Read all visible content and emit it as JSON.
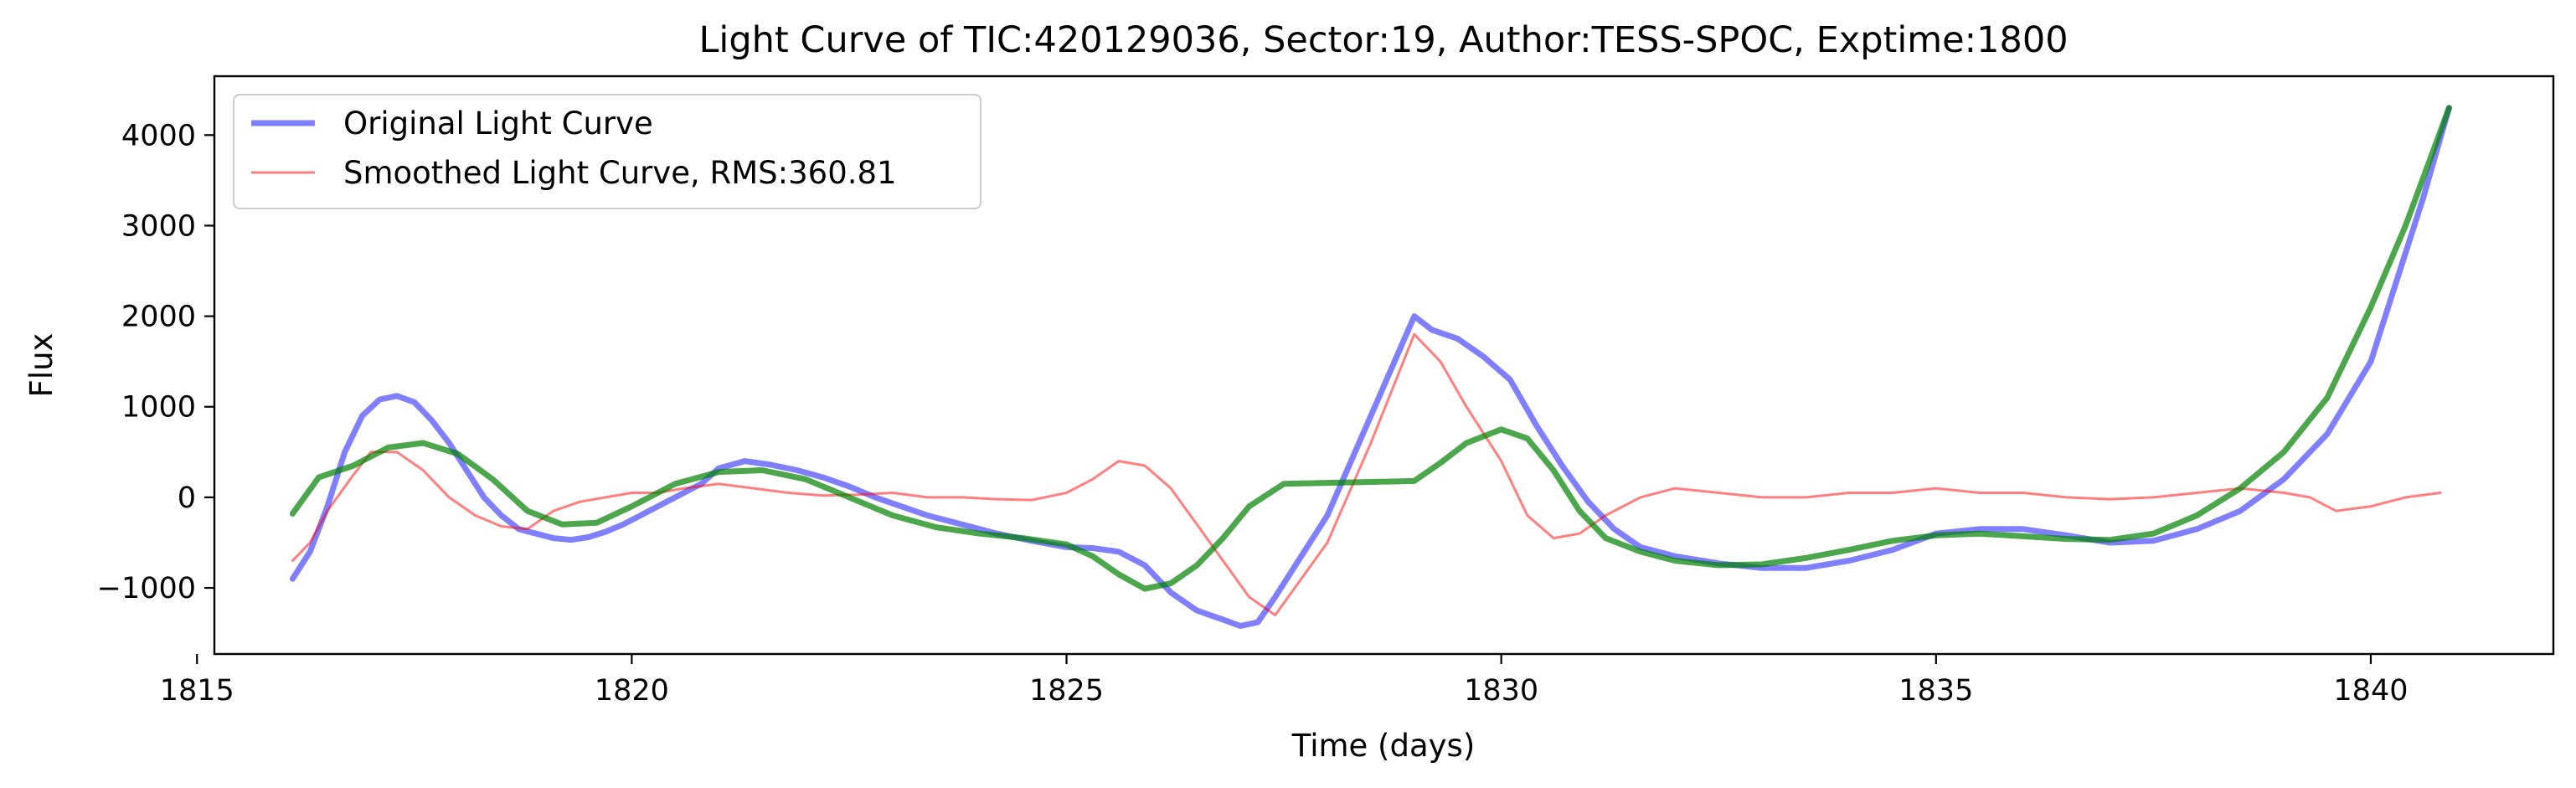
{
  "chart_data": {
    "type": "line",
    "title": "Light Curve of TIC:420129036, Sector:19, Author:TESS-SPOC, Exptime:1800",
    "xlabel": "Time (days)",
    "ylabel": "Flux",
    "xlim": [
      1815.2,
      1842.1
    ],
    "ylim": [
      -1730,
      4650
    ],
    "x_ticks": [
      1815,
      1820,
      1825,
      1830,
      1835,
      1840
    ],
    "y_ticks": [
      -1000,
      0,
      1000,
      2000,
      3000,
      4000
    ],
    "x_tick_labels": [
      "1815",
      "1820",
      "1825",
      "1830",
      "1835",
      "1840"
    ],
    "y_tick_labels": [
      "−1000",
      "0",
      "1000",
      "2000",
      "3000",
      "4000"
    ],
    "grid": false,
    "legend_position": "top-left",
    "series": [
      {
        "name": "Original Light Curve",
        "color": "#0000ff",
        "opacity": 0.5,
        "linewidth": "thick",
        "x": [
          1816.1,
          1816.3,
          1816.5,
          1816.7,
          1816.9,
          1817.1,
          1817.3,
          1817.5,
          1817.7,
          1817.9,
          1818.1,
          1818.3,
          1818.5,
          1818.7,
          1818.9,
          1819.1,
          1819.3,
          1819.5,
          1819.7,
          1819.9,
          1820.2,
          1820.5,
          1820.8,
          1821.0,
          1821.3,
          1821.6,
          1821.9,
          1822.2,
          1822.5,
          1822.8,
          1823.1,
          1823.4,
          1823.8,
          1824.2,
          1824.6,
          1825.0,
          1825.3,
          1825.6,
          1825.9,
          1826.2,
          1826.5,
          1826.8,
          1827.0,
          1827.2,
          1827.4,
          1828.0,
          1828.5,
          1829.0,
          1829.2,
          1829.5,
          1829.8,
          1830.1,
          1830.4,
          1830.7,
          1831.0,
          1831.3,
          1831.6,
          1832.0,
          1832.5,
          1833.0,
          1833.5,
          1834.0,
          1834.5,
          1835.0,
          1835.5,
          1836.0,
          1836.5,
          1837.0,
          1837.5,
          1838.0,
          1838.5,
          1839.0,
          1839.5,
          1840.0,
          1840.3,
          1840.6,
          1840.9
        ],
        "y": [
          -900,
          -600,
          -100,
          500,
          900,
          1080,
          1120,
          1050,
          850,
          600,
          300,
          0,
          -200,
          -350,
          -400,
          -450,
          -470,
          -440,
          -380,
          -300,
          -150,
          0,
          150,
          320,
          400,
          360,
          300,
          220,
          120,
          0,
          -100,
          -200,
          -300,
          -400,
          -480,
          -550,
          -560,
          -600,
          -750,
          -1050,
          -1250,
          -1350,
          -1420,
          -1380,
          -1100,
          -200,
          900,
          2000,
          1850,
          1750,
          1550,
          1300,
          800,
          350,
          -50,
          -350,
          -550,
          -650,
          -730,
          -780,
          -780,
          -700,
          -580,
          -400,
          -350,
          -350,
          -420,
          -500,
          -480,
          -350,
          -150,
          200,
          700,
          1500,
          2400,
          3300,
          4300
        ]
      },
      {
        "name": "Smoothed Light Curve, RMS:360.81",
        "color": "#ff0000",
        "opacity": 0.5,
        "linewidth": "thin",
        "x": [
          1816.1,
          1816.3,
          1816.5,
          1816.8,
          1817.0,
          1817.3,
          1817.6,
          1817.9,
          1818.2,
          1818.5,
          1818.8,
          1819.1,
          1819.4,
          1819.7,
          1820.0,
          1820.3,
          1820.6,
          1821.0,
          1821.4,
          1821.8,
          1822.2,
          1822.6,
          1823.0,
          1823.4,
          1823.8,
          1824.2,
          1824.6,
          1825.0,
          1825.3,
          1825.6,
          1825.9,
          1826.2,
          1826.5,
          1826.8,
          1827.1,
          1827.4,
          1828.0,
          1828.5,
          1829.0,
          1829.3,
          1829.6,
          1830.0,
          1830.3,
          1830.6,
          1830.9,
          1831.2,
          1831.6,
          1832.0,
          1832.5,
          1833.0,
          1833.5,
          1834.0,
          1834.5,
          1835.0,
          1835.5,
          1836.0,
          1836.5,
          1837.0,
          1837.5,
          1838.0,
          1838.5,
          1839.0,
          1839.3,
          1839.6,
          1840.0,
          1840.4,
          1840.8
        ],
        "y": [
          -700,
          -500,
          -150,
          250,
          500,
          500,
          300,
          0,
          -200,
          -320,
          -350,
          -150,
          -50,
          0,
          50,
          50,
          100,
          150,
          100,
          50,
          20,
          30,
          50,
          0,
          0,
          -20,
          -30,
          50,
          200,
          400,
          350,
          100,
          -300,
          -700,
          -1100,
          -1300,
          -500,
          600,
          1800,
          1500,
          1000,
          400,
          -200,
          -450,
          -400,
          -200,
          0,
          100,
          50,
          0,
          0,
          50,
          50,
          100,
          50,
          50,
          0,
          -20,
          0,
          50,
          100,
          50,
          0,
          -150,
          -100,
          0,
          50
        ]
      },
      {
        "name": "",
        "color": "#008000",
        "opacity": 0.7,
        "linewidth": "thick",
        "x": [
          1816.1,
          1816.4,
          1816.8,
          1817.2,
          1817.6,
          1818.0,
          1818.4,
          1818.8,
          1819.2,
          1819.6,
          1820.0,
          1820.5,
          1821.0,
          1821.5,
          1822.0,
          1822.5,
          1823.0,
          1823.5,
          1824.0,
          1824.5,
          1825.0,
          1825.3,
          1825.6,
          1825.9,
          1826.2,
          1826.5,
          1826.8,
          1827.1,
          1827.5,
          1828.0,
          1828.5,
          1829.0,
          1829.3,
          1829.6,
          1830.0,
          1830.3,
          1830.6,
          1830.9,
          1831.2,
          1831.6,
          1832.0,
          1832.5,
          1833.0,
          1833.5,
          1834.0,
          1834.5,
          1835.0,
          1835.5,
          1836.0,
          1836.5,
          1837.0,
          1837.5,
          1838.0,
          1838.5,
          1839.0,
          1839.5,
          1840.0,
          1840.4,
          1840.9
        ],
        "y": [
          -180,
          220,
          350,
          550,
          600,
          480,
          200,
          -150,
          -300,
          -280,
          -100,
          150,
          280,
          300,
          200,
          0,
          -200,
          -330,
          -400,
          -450,
          -520,
          -650,
          -850,
          -1010,
          -950,
          -750,
          -450,
          -100,
          150,
          160,
          170,
          180,
          380,
          600,
          750,
          650,
          300,
          -150,
          -450,
          -600,
          -700,
          -750,
          -740,
          -670,
          -580,
          -480,
          -420,
          -400,
          -430,
          -460,
          -470,
          -400,
          -200,
          100,
          500,
          1100,
          2100,
          3000,
          4300
        ]
      }
    ]
  }
}
